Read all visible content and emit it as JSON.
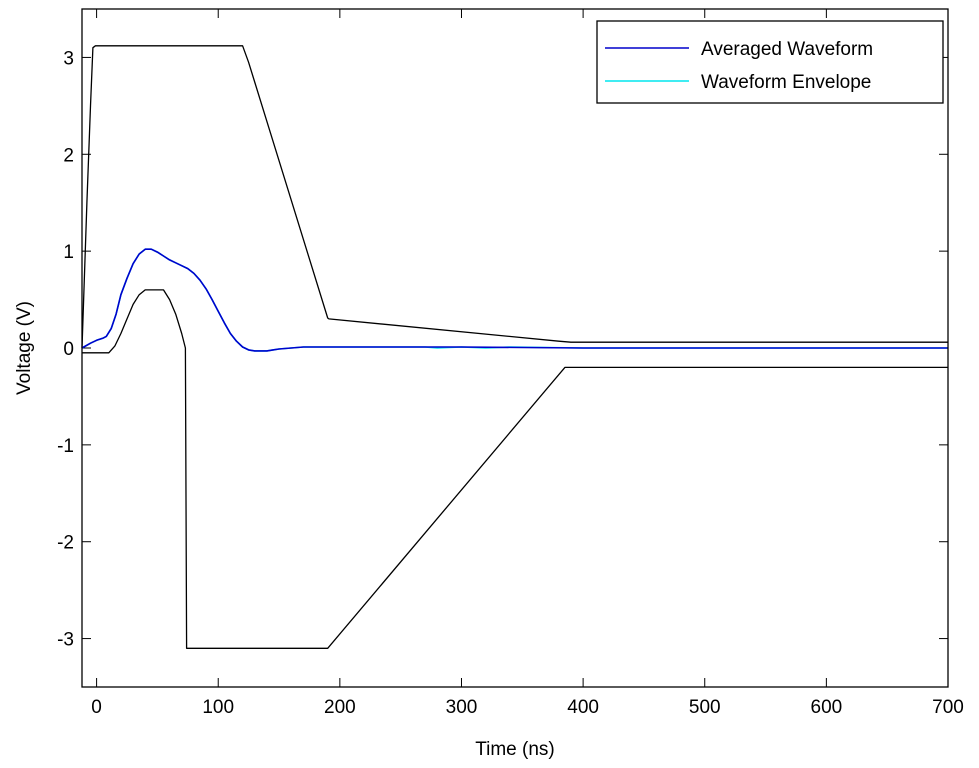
{
  "chart_data": {
    "type": "line",
    "title": "",
    "xlabel": "Time (ns)",
    "ylabel": "Voltage (V)",
    "xlim": [
      -12,
      700
    ],
    "ylim": [
      -3.5,
      3.5
    ],
    "xticks": [
      0,
      100,
      200,
      300,
      400,
      500,
      600,
      700
    ],
    "yticks": [
      -3,
      -2,
      -1,
      0,
      1,
      2,
      3
    ],
    "grid": false,
    "legend": {
      "position": "top-right"
    },
    "series": [
      {
        "name": "Averaged Waveform",
        "color": "#0000cc",
        "in_legend": true,
        "x": [
          -12,
          -5,
          0,
          5,
          8,
          12,
          16,
          20,
          25,
          30,
          35,
          40,
          45,
          50,
          55,
          60,
          65,
          70,
          75,
          80,
          85,
          90,
          95,
          100,
          105,
          110,
          115,
          120,
          125,
          130,
          135,
          140,
          145,
          150,
          160,
          170,
          200,
          300,
          400,
          500,
          600,
          700
        ],
        "y": [
          0.0,
          0.05,
          0.08,
          0.1,
          0.12,
          0.2,
          0.35,
          0.55,
          0.72,
          0.87,
          0.97,
          1.02,
          1.02,
          0.99,
          0.95,
          0.91,
          0.88,
          0.85,
          0.82,
          0.77,
          0.7,
          0.61,
          0.5,
          0.38,
          0.26,
          0.15,
          0.07,
          0.01,
          -0.02,
          -0.03,
          -0.03,
          -0.03,
          -0.02,
          -0.01,
          0.0,
          0.01,
          0.01,
          0.01,
          0.0,
          0.0,
          0.0,
          0.0
        ]
      },
      {
        "name": "Waveform Envelope",
        "color": "#00e5ee",
        "in_legend": true,
        "x": [
          -12,
          -5,
          0,
          5,
          8,
          12,
          16,
          20,
          25,
          30,
          35,
          40,
          45,
          50,
          55,
          60,
          65,
          70,
          75,
          80,
          85,
          90,
          95,
          100,
          105,
          110,
          115,
          120,
          125,
          130,
          135,
          140,
          145,
          150,
          160,
          170,
          200,
          270,
          280,
          300,
          320,
          340,
          400,
          500,
          600,
          700
        ],
        "y": [
          0.0,
          0.05,
          0.08,
          0.1,
          0.12,
          0.2,
          0.35,
          0.55,
          0.72,
          0.87,
          0.97,
          1.02,
          1.02,
          0.99,
          0.95,
          0.91,
          0.88,
          0.85,
          0.82,
          0.77,
          0.7,
          0.61,
          0.5,
          0.38,
          0.26,
          0.15,
          0.07,
          0.01,
          -0.02,
          -0.03,
          -0.03,
          -0.03,
          -0.02,
          -0.01,
          0.0,
          0.01,
          0.01,
          0.01,
          0.0,
          0.01,
          0.0,
          0.01,
          0.0,
          0.0,
          0.0,
          0.0
        ]
      },
      {
        "name": "",
        "color": "#000000",
        "in_legend": false,
        "x": [
          -12,
          -8,
          -5,
          -3,
          -1,
          0,
          2,
          120,
          125,
          190,
          191,
          380,
          390,
          700
        ],
        "y": [
          0.0,
          1.5,
          2.5,
          3.1,
          3.12,
          3.12,
          3.12,
          3.12,
          2.95,
          0.31,
          0.3,
          0.07,
          0.06,
          0.06
        ]
      },
      {
        "name": "",
        "color": "#000000",
        "in_legend": false,
        "x": [
          -12,
          10,
          15,
          20,
          25,
          30,
          35,
          40,
          45,
          55,
          60,
          65,
          70,
          73,
          74,
          75,
          190,
          385,
          390,
          700
        ],
        "y": [
          -0.05,
          -0.05,
          0.02,
          0.15,
          0.3,
          0.45,
          0.55,
          0.6,
          0.6,
          0.6,
          0.5,
          0.35,
          0.15,
          0.0,
          -3.1,
          -3.1,
          -3.1,
          -0.2,
          -0.2,
          -0.2
        ]
      }
    ]
  }
}
